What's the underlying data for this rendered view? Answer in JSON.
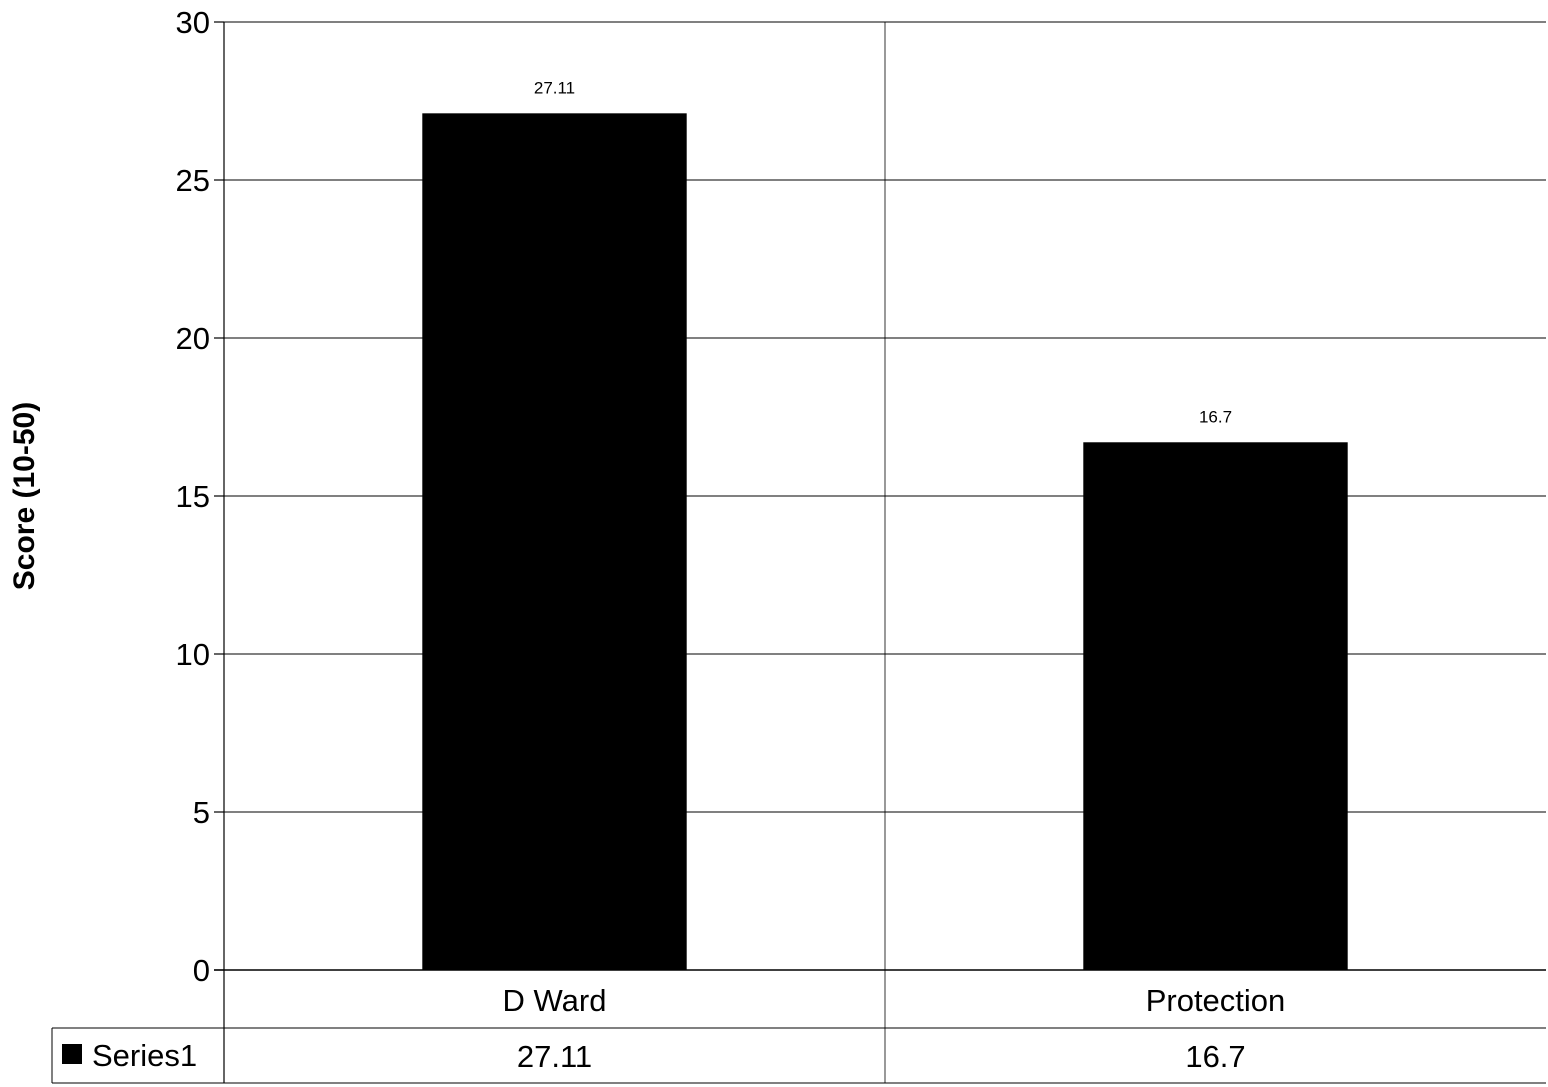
{
  "chart_data": {
    "type": "bar",
    "categories": [
      "D Ward",
      "Protection"
    ],
    "series": [
      {
        "name": "Series1",
        "values": [
          27.11,
          16.7
        ],
        "color": "#000000"
      }
    ],
    "data_labels": [
      "27.11",
      "16.7"
    ],
    "title": "",
    "xlabel": "",
    "ylabel": "Score (10-50)",
    "ylim": [
      0,
      30
    ],
    "yticks": [
      0,
      5,
      10,
      15,
      20,
      25,
      30
    ],
    "grid": true,
    "legend": "data-table-left",
    "data_table": {
      "legend_label": "Series1",
      "values": [
        "27.11",
        "16.7"
      ]
    }
  }
}
